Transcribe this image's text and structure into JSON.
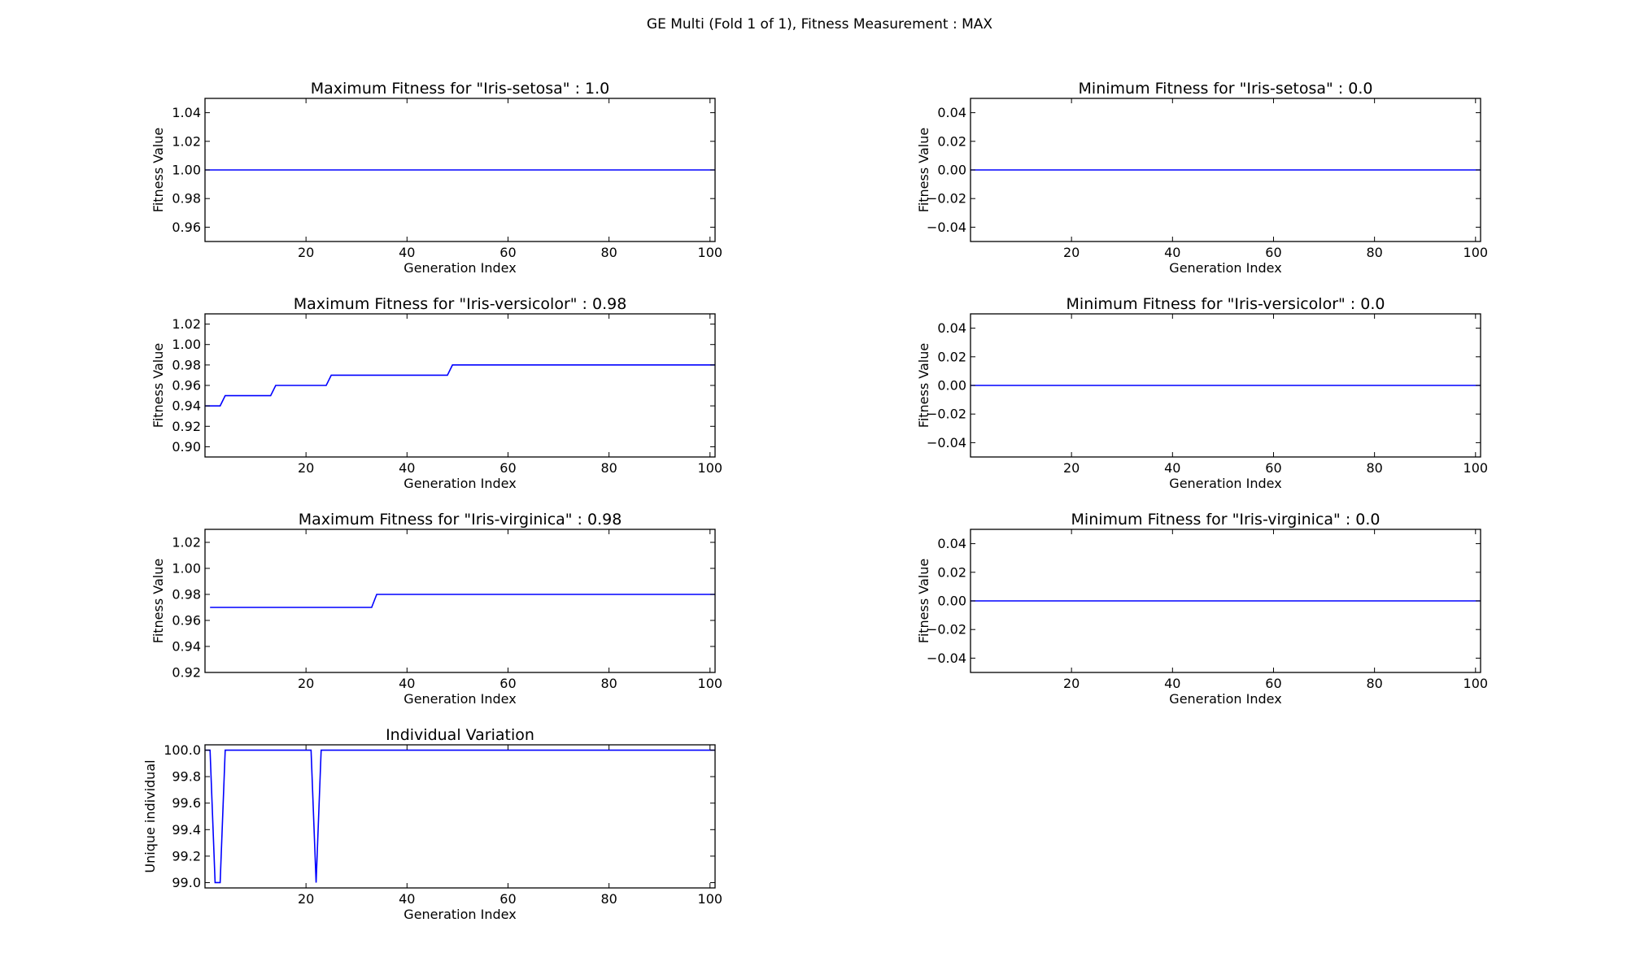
{
  "figure": {
    "suptitle": "GE Multi (Fold 1 of 1), Fitness Measurement : MAX"
  },
  "colors": {
    "line": "#0000ff",
    "axes": "#000000",
    "background": "#ffffff"
  },
  "chart_data": [
    {
      "type": "line",
      "title": "Maximum Fitness for \"Iris-setosa\" : 1.0",
      "xlabel": "Generation Index",
      "ylabel": "Fitness Value",
      "xlim": [
        0,
        101
      ],
      "ylim": [
        0.95,
        1.05
      ],
      "xticks": [
        20,
        40,
        60,
        80,
        100
      ],
      "xtick_labels": [
        "20",
        "40",
        "60",
        "80",
        "100"
      ],
      "yticks": [
        0.96,
        0.98,
        1.0,
        1.02,
        1.04
      ],
      "ytick_labels": [
        "0.96",
        "0.98",
        "1.00",
        "1.02",
        "1.04"
      ],
      "grid": false,
      "series": [
        {
          "x": [
            0,
            101
          ],
          "y": [
            1.0,
            1.0
          ]
        }
      ]
    },
    {
      "type": "line",
      "title": "Minimum Fitness for \"Iris-setosa\" : 0.0",
      "xlabel": "Generation Index",
      "ylabel": "Fitness Value",
      "xlim": [
        0,
        101
      ],
      "ylim": [
        -0.05,
        0.05
      ],
      "xticks": [
        20,
        40,
        60,
        80,
        100
      ],
      "xtick_labels": [
        "20",
        "40",
        "60",
        "80",
        "100"
      ],
      "yticks": [
        -0.04,
        -0.02,
        0.0,
        0.02,
        0.04
      ],
      "ytick_labels": [
        "−0.04",
        "−0.02",
        "0.00",
        "0.02",
        "0.04"
      ],
      "grid": false,
      "series": [
        {
          "x": [
            0,
            101
          ],
          "y": [
            0.0,
            0.0
          ]
        }
      ]
    },
    {
      "type": "line",
      "title": "Maximum Fitness for \"Iris-versicolor\" : 0.98",
      "xlabel": "Generation Index",
      "ylabel": "Fitness Value",
      "xlim": [
        0,
        101
      ],
      "ylim": [
        0.89,
        1.03
      ],
      "xticks": [
        20,
        40,
        60,
        80,
        100
      ],
      "xtick_labels": [
        "20",
        "40",
        "60",
        "80",
        "100"
      ],
      "yticks": [
        0.9,
        0.92,
        0.94,
        0.96,
        0.98,
        1.0,
        1.02
      ],
      "ytick_labels": [
        "0.90",
        "0.92",
        "0.94",
        "0.96",
        "0.98",
        "1.00",
        "1.02"
      ],
      "grid": false,
      "series": [
        {
          "x": [
            0,
            3,
            4,
            13,
            14,
            24,
            25,
            48,
            49,
            101
          ],
          "y": [
            0.94,
            0.94,
            0.95,
            0.95,
            0.96,
            0.96,
            0.97,
            0.97,
            0.98,
            0.98
          ]
        }
      ]
    },
    {
      "type": "line",
      "title": "Minimum Fitness for \"Iris-versicolor\" : 0.0",
      "xlabel": "Generation Index",
      "ylabel": "Fitness Value",
      "xlim": [
        0,
        101
      ],
      "ylim": [
        -0.05,
        0.05
      ],
      "xticks": [
        20,
        40,
        60,
        80,
        100
      ],
      "xtick_labels": [
        "20",
        "40",
        "60",
        "80",
        "100"
      ],
      "yticks": [
        -0.04,
        -0.02,
        0.0,
        0.02,
        0.04
      ],
      "ytick_labels": [
        "−0.04",
        "−0.02",
        "0.00",
        "0.02",
        "0.04"
      ],
      "grid": false,
      "series": [
        {
          "x": [
            0,
            101
          ],
          "y": [
            0.0,
            0.0
          ]
        }
      ]
    },
    {
      "type": "line",
      "title": "Maximum Fitness for \"Iris-virginica\" : 0.98",
      "xlabel": "Generation Index",
      "ylabel": "Fitness Value",
      "xlim": [
        0,
        101
      ],
      "ylim": [
        0.92,
        1.03
      ],
      "xticks": [
        20,
        40,
        60,
        80,
        100
      ],
      "xtick_labels": [
        "20",
        "40",
        "60",
        "80",
        "100"
      ],
      "yticks": [
        0.92,
        0.94,
        0.96,
        0.98,
        1.0,
        1.02
      ],
      "ytick_labels": [
        "0.92",
        "0.94",
        "0.96",
        "0.98",
        "1.00",
        "1.02"
      ],
      "grid": false,
      "series": [
        {
          "x": [
            1,
            33,
            34,
            101
          ],
          "y": [
            0.97,
            0.97,
            0.98,
            0.98
          ]
        }
      ]
    },
    {
      "type": "line",
      "title": "Minimum Fitness for \"Iris-virginica\" : 0.0",
      "xlabel": "Generation Index",
      "ylabel": "Fitness Value",
      "xlim": [
        0,
        101
      ],
      "ylim": [
        -0.05,
        0.05
      ],
      "xticks": [
        20,
        40,
        60,
        80,
        100
      ],
      "xtick_labels": [
        "20",
        "40",
        "60",
        "80",
        "100"
      ],
      "yticks": [
        -0.04,
        -0.02,
        0.0,
        0.02,
        0.04
      ],
      "ytick_labels": [
        "−0.04",
        "−0.02",
        "0.00",
        "0.02",
        "0.04"
      ],
      "grid": false,
      "series": [
        {
          "x": [
            0,
            101
          ],
          "y": [
            0.0,
            0.0
          ]
        }
      ]
    },
    {
      "type": "line",
      "title": "Individual Variation",
      "xlabel": "Generation Index",
      "ylabel": "Unique individual",
      "xlim": [
        0,
        101
      ],
      "ylim": [
        98.96,
        100.04
      ],
      "xticks": [
        20,
        40,
        60,
        80,
        100
      ],
      "xtick_labels": [
        "20",
        "40",
        "60",
        "80",
        "100"
      ],
      "yticks": [
        99.0,
        99.2,
        99.4,
        99.6,
        99.8,
        100.0
      ],
      "ytick_labels": [
        "99.0",
        "99.2",
        "99.4",
        "99.6",
        "99.8",
        "100.0"
      ],
      "grid": false,
      "series": [
        {
          "x": [
            0,
            1,
            2,
            3,
            4,
            21,
            22,
            23,
            101
          ],
          "y": [
            100.0,
            100.0,
            99.0,
            99.0,
            100.0,
            100.0,
            99.0,
            100.0,
            100.0
          ]
        }
      ]
    }
  ]
}
